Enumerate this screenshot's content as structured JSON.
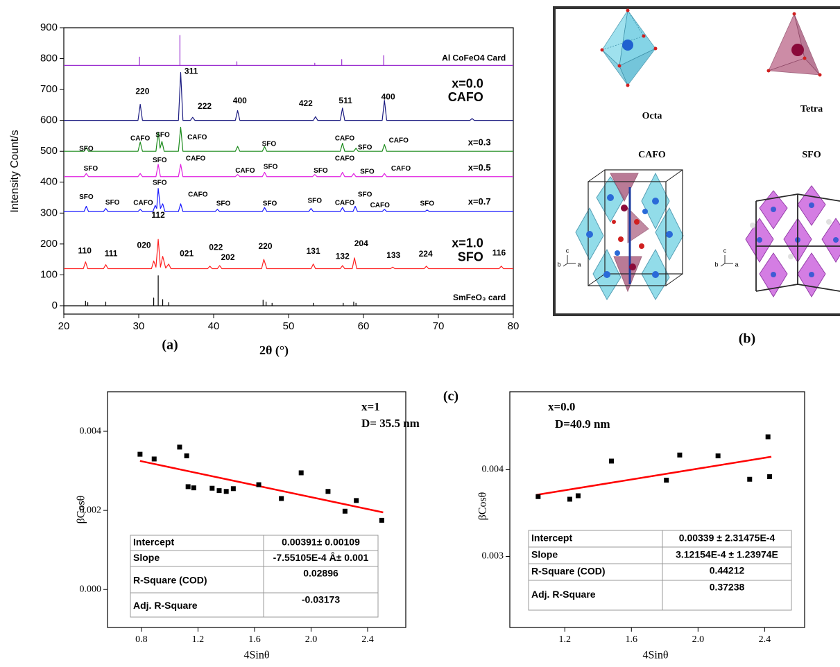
{
  "panel_labels": [
    "(a)",
    "(b)",
    "(c)"
  ],
  "chart_data": [
    {
      "type": "line",
      "xlabel": "2θ (°)",
      "ylabel": "Intensity Count/s",
      "xlim": [
        20,
        80
      ],
      "ylim": [
        -27,
        900
      ],
      "xticks": [
        20,
        30,
        40,
        50,
        60,
        70,
        80
      ],
      "yticks": [
        0,
        100,
        200,
        300,
        400,
        500,
        600,
        700,
        800,
        900
      ],
      "series": [
        {
          "name": "Al CoFeO4 Card",
          "color": "#9b30d0",
          "x": [
            20,
            30.1,
            30.1,
            30.1,
            35.5,
            35.5,
            35.5,
            43.1,
            43.1,
            43.1,
            53.5,
            53.5,
            53.5,
            57.1,
            57.1,
            57.1,
            62.7,
            62.7,
            62.7,
            80
          ],
          "values": [
            778,
            778,
            805,
            778,
            778,
            875,
            778,
            778,
            790,
            778,
            778,
            785,
            778,
            778,
            797,
            778,
            778,
            810,
            778,
            778
          ]
        },
        {
          "name": "x=0.0",
          "color": "#1a1a80",
          "x": [
            20,
            29.9,
            30.2,
            30.5,
            35.3,
            35.6,
            35.9,
            36.9,
            37.2,
            37.5,
            42.9,
            43.2,
            43.5,
            53.3,
            53.6,
            53.9,
            56.9,
            57.2,
            57.5,
            62.5,
            62.8,
            63.1,
            74.2,
            74.5,
            74.8,
            80
          ],
          "values": [
            600,
            600,
            652,
            600,
            600,
            755,
            600,
            600,
            610,
            600,
            600,
            632,
            600,
            600,
            612,
            600,
            600,
            640,
            600,
            600,
            665,
            600,
            600,
            606,
            600,
            600
          ]
        },
        {
          "name": "x=0.3",
          "color": "#1a8a1a",
          "x": [
            20,
            22.7,
            23,
            23.3,
            29.9,
            30.2,
            30.5,
            32.3,
            32.6,
            32.85,
            33.1,
            33.4,
            35.3,
            35.6,
            35.9,
            42.9,
            43.2,
            43.5,
            46.5,
            46.8,
            47.1,
            56.9,
            57.2,
            57.5,
            58.7,
            59,
            59.3,
            62.5,
            62.8,
            63.1,
            80
          ],
          "values": [
            500,
            500,
            512,
            500,
            500,
            530,
            500,
            500,
            562,
            510,
            532,
            500,
            500,
            578,
            500,
            500,
            516,
            500,
            500,
            515,
            500,
            500,
            526,
            500,
            500,
            510,
            500,
            500,
            522,
            500,
            500
          ]
        },
        {
          "name": "x=0.5",
          "color": "#e020e0",
          "x": [
            20,
            22.7,
            23,
            23.3,
            29.9,
            30.2,
            30.5,
            32.3,
            32.6,
            32.9,
            35.3,
            35.6,
            35.9,
            42.9,
            43.2,
            43.5,
            46.5,
            46.8,
            47.1,
            53.2,
            53.5,
            53.8,
            56.9,
            57.2,
            57.5,
            58.4,
            58.7,
            59,
            62.5,
            62.8,
            63.1,
            80
          ],
          "values": [
            418,
            418,
            428,
            418,
            418,
            428,
            418,
            418,
            458,
            418,
            418,
            458,
            418,
            418,
            425,
            418,
            418,
            432,
            418,
            418,
            425,
            418,
            418,
            432,
            418,
            418,
            428,
            418,
            418,
            428,
            418,
            418
          ]
        },
        {
          "name": "x=0.7",
          "color": "#1a1aff",
          "x": [
            20,
            22.7,
            23,
            23.3,
            25.3,
            25.6,
            25.9,
            29.9,
            30.2,
            30.5,
            31.9,
            32.2,
            32.4,
            32.6,
            32.9,
            33.2,
            33.5,
            35.3,
            35.6,
            35.9,
            40.2,
            40.5,
            40.8,
            46.5,
            46.8,
            47.1,
            52.7,
            53,
            53.3,
            56.9,
            57.2,
            57.5,
            58.6,
            58.9,
            59.2,
            62.5,
            62.8,
            63.1,
            68.2,
            68.5,
            68.8,
            80
          ],
          "values": [
            305,
            305,
            322,
            305,
            305,
            315,
            305,
            305,
            312,
            305,
            305,
            325,
            315,
            380,
            315,
            330,
            305,
            305,
            330,
            305,
            305,
            312,
            305,
            305,
            318,
            305,
            305,
            315,
            305,
            305,
            318,
            305,
            305,
            322,
            305,
            305,
            312,
            305,
            305,
            310,
            305,
            305
          ]
        },
        {
          "name": "x=1.0",
          "color": "#ff2020",
          "x": [
            20,
            22.6,
            22.9,
            23.2,
            25.3,
            25.6,
            25.9,
            31.7,
            32,
            32.3,
            32.6,
            32.9,
            33.2,
            33.6,
            34,
            34.3,
            39.2,
            39.5,
            39.8,
            40.5,
            40.8,
            41.1,
            46.4,
            46.7,
            47.1,
            53,
            53.3,
            53.6,
            56.9,
            57.2,
            57.5,
            58.5,
            58.8,
            59.1,
            63.6,
            63.9,
            64.2,
            68.1,
            68.4,
            68.7,
            78.1,
            78.4,
            78.7,
            80
          ],
          "values": [
            120,
            120,
            142,
            120,
            120,
            133,
            120,
            120,
            145,
            125,
            215,
            125,
            160,
            122,
            135,
            120,
            120,
            128,
            120,
            120,
            130,
            120,
            120,
            150,
            120,
            120,
            135,
            120,
            120,
            130,
            120,
            120,
            155,
            120,
            120,
            125,
            120,
            120,
            128,
            120,
            120,
            128,
            120,
            120
          ]
        },
        {
          "name": "SmFeO₃ card",
          "color": "#000000",
          "x": [
            20,
            22.9,
            22.9,
            22.9,
            23.2,
            23.2,
            23.2,
            25.6,
            25.6,
            25.6,
            32,
            32,
            32,
            32.6,
            32.6,
            32.6,
            33.2,
            33.2,
            33.2,
            34,
            34,
            34,
            46.6,
            46.6,
            46.6,
            47,
            47,
            47,
            47.8,
            47.8,
            47.8,
            53.3,
            53.3,
            53.3,
            57.3,
            57.3,
            57.3,
            58.7,
            58.7,
            58.7,
            59,
            59,
            59,
            80
          ],
          "values": [
            0,
            0,
            15,
            0,
            0,
            10,
            0,
            0,
            12,
            0,
            0,
            25,
            0,
            0,
            97,
            0,
            0,
            20,
            0,
            0,
            10,
            0,
            0,
            18,
            0,
            0,
            12,
            0,
            0,
            8,
            0,
            0,
            8,
            0,
            0,
            8,
            0,
            0,
            12,
            0,
            0,
            8,
            0,
            0
          ]
        }
      ],
      "annotations": [
        "CAFO",
        "SFO",
        "220",
        "311",
        "222",
        "400",
        "422",
        "511",
        "400",
        "110",
        "111",
        "020",
        "112",
        "021",
        "022",
        "202",
        "220",
        "131",
        "132",
        "204",
        "133",
        "224",
        "116",
        "SFO",
        "CAFO",
        "SFO",
        "CAFO",
        "SFO",
        "CAFO",
        "SFO",
        "CAFO",
        "SFO",
        "SFO",
        "CAFO",
        "CAFO",
        "SFO",
        "SFO",
        "CAFO",
        "SFO",
        "CAFO",
        "SFO",
        "SFO",
        "CAFO",
        "SFO",
        "CAFO",
        "SFO",
        "SFO",
        "SFO",
        "CAFO",
        "SFO",
        "CAFO",
        "SFO"
      ]
    },
    {
      "type": "scatter",
      "xlabel": "4Sinθ",
      "ylabel": "βCosθ",
      "xlim": [
        0.56,
        2.67
      ],
      "ylim": [
        -0.00096,
        0.005
      ],
      "xticks": [
        0.8,
        1.2,
        1.6,
        {
          "value": 2,
          "label": "2.0"
        },
        2.4
      ],
      "yticks": [
        {
          "value": 0,
          "label": "0.000"
        },
        0.002,
        0.004
      ],
      "color": "#000000",
      "x": [
        0.79,
        0.89,
        1.07,
        1.12,
        1.13,
        1.17,
        1.3,
        1.35,
        1.4,
        1.45,
        1.63,
        1.79,
        1.93,
        2.12,
        2.24,
        2.32,
        2.5
      ],
      "values": [
        0.00342,
        0.0033,
        0.0036,
        0.00338,
        0.0026,
        0.00257,
        0.00256,
        0.0025,
        0.00248,
        0.00255,
        0.00265,
        0.0023,
        0.00295,
        0.00248,
        0.00198,
        0.00225,
        0.00175
      ],
      "fit": {
        "color": "#ff0000",
        "x": [
          0.79,
          2.51
        ],
        "values": [
          0.00325,
          0.00195
        ]
      },
      "annotations": [
        "x=1",
        "D= 35.5 nm"
      ],
      "table": [
        [
          "Intercept",
          "0.00391± 0.00109"
        ],
        [
          "Slope",
          "-7.55105E-4 Â± 0.001"
        ],
        [
          "R-Square (COD)",
          "0.02896"
        ],
        [
          "Adj. R-Square",
          "-0.03173"
        ]
      ]
    },
    {
      "type": "scatter",
      "xlabel": "4Sinθ",
      "ylabel": "βCosθ",
      "xlim": [
        0.87,
        2.64
      ],
      "ylim": [
        0.00218,
        0.0049
      ],
      "xticks": [
        1.2,
        1.6,
        {
          "value": 2,
          "label": "2.0"
        },
        2.4
      ],
      "yticks": [
        0.003,
        0.004
      ],
      "color": "#000000",
      "x": [
        1.04,
        1.23,
        1.28,
        1.48,
        1.81,
        1.89,
        2.12,
        2.31,
        2.42,
        2.43
      ],
      "values": [
        0.00369,
        0.00366,
        0.0037,
        0.0041,
        0.00388,
        0.00417,
        0.00416,
        0.00389,
        0.00438,
        0.00392
      ],
      "fit": {
        "color": "#ff0000",
        "x": [
          1.03,
          2.44
        ],
        "values": [
          0.00371,
          0.00415
        ]
      },
      "annotations": [
        "x=0.0",
        "D=40.9 nm"
      ],
      "table": [
        [
          "Intercept",
          "0.00339 ± 2.31475E-4"
        ],
        [
          "Slope",
          "3.12154E-4 ± 1.23974E"
        ],
        [
          "R-Square (COD)",
          "0.44212"
        ],
        [
          "Adj. R-Square",
          "0.37238"
        ]
      ]
    }
  ],
  "structure": {
    "labels": [
      "Octa",
      "Tetra",
      "CAFO",
      "SFO"
    ],
    "axis_labels": [
      "c",
      "b",
      "a",
      "c",
      "b",
      "a"
    ]
  }
}
